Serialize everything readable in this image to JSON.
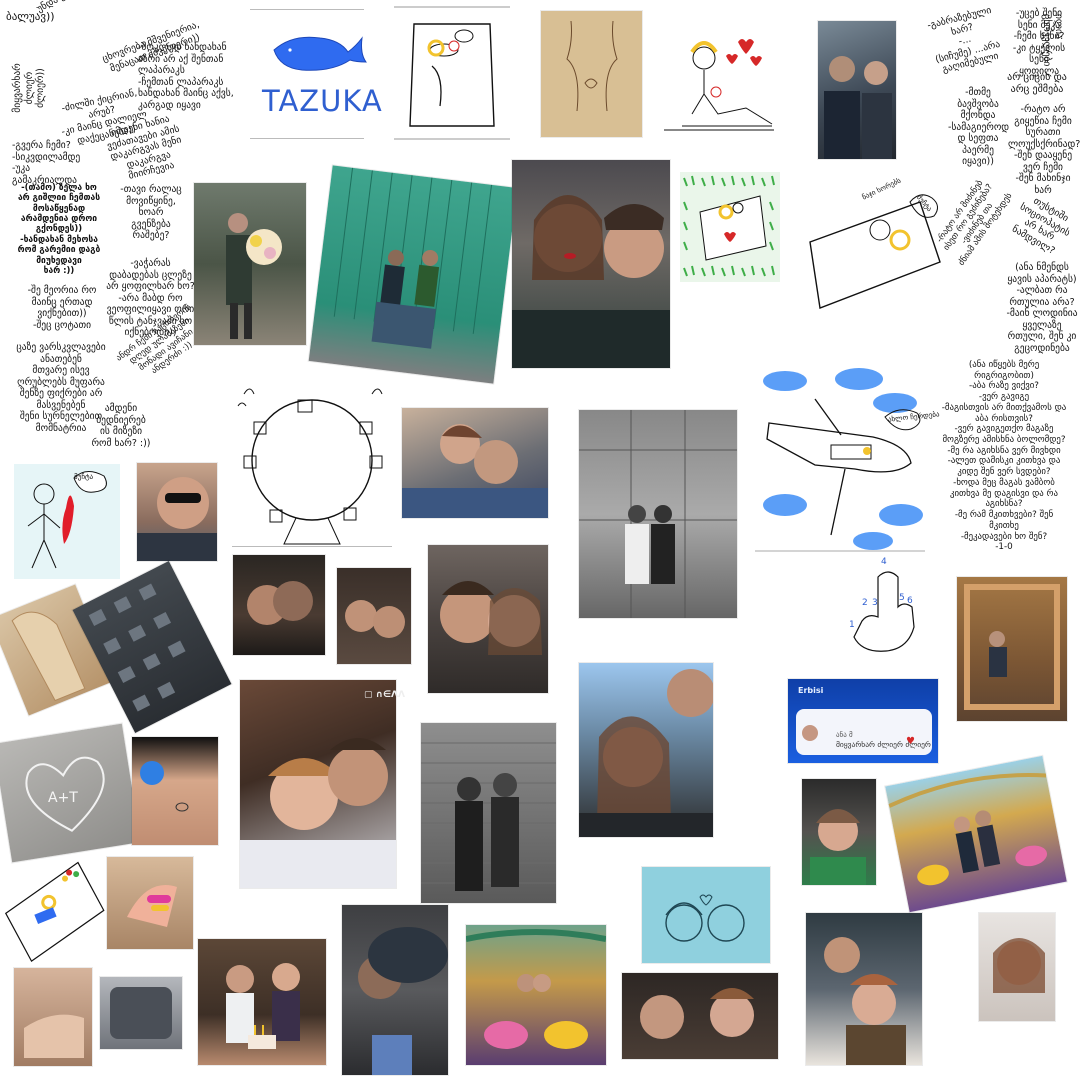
{
  "notes": {
    "n01": "ბალუავ))",
    "n02": "უნდა ვიწუპაჭუპო ა.ვ",
    "n03": "ცხოვრება მშვენიერია,\nმენაცათ მშვენიერი))",
    "n04": "-მოკლედ ხანდახან\nაზრი არ აქ შენთან\nლაპარაკს\n-ჩემთან ლაპარაკს\nხანდახან მაინც აქვს,\nკარგად იყავი",
    "n05": "-ძილში ქიცრიან,\nარუბ?\n-კი მაინც დალიელ\nდაქეცანება))",
    "n06": "მიყვარხარ\nძლიერ\nძლიერ))",
    "n07": "იმდენი ხანია\nვეძათავები ამის\nდაკარგვას მენი\nდაკარგვა\nმიირჩევია",
    "n08": "-გვერა ჩემი?\n-სიკვდილამდე\n-უკა გამაკრიალდა",
    "n09": "-(თამო) ზელა ხო\nარ გიშლიი ჩემთას\nმოსაწყენად\nარამდენია დროი\nგქონდეს))\n-ხანდახან მეხოსა\nრომ გარემიი დაგბ\nმიუხედავი\nხარ :))",
    "n10": "-თავი რალაც\nმოვიწყინე,\nხოარ\nგვენზება\nრაშებე?",
    "n11": "-შე მეორია რო\nმაინც ერთად\nვიქნებით))\n-შეც ცოტათი",
    "n12": "-ვაჭარას\nდაბადებას ცლეზე\nარ ყოფილხარ ხო?\n-არა მაბდ რო\nვეოფილიყავი ორი\nწლის ტანჯვაში ხო\nიქნებოდი))",
    "n13": "ცაზე ვარსკვლავები\nანათებენ\nმთვარე ისევ\nღრუბლებს მუფარა\nშენზე ფიქრები არ\nმასვენებენ\nშენი სურნელებით\nმომნატრია",
    "n14": "ანდრ ჩემი საცხოვრის\nდღედ ულამაზესი\nმონადი ავიჩანი\nანდერძი :))",
    "n15": "ამდენი\nბედნიერებ\nის მიზეზი\nრომ ხარ? :))",
    "n16": "-გაბრაზებული\nხარ?\n-...\n(სიჩუმე) ...არა\nგაღიმებული",
    "n17": "-უცებ შენი\nსენი მეკა\n-ჩემი სენი?\n-კი ტყელის\nსენი ყოფილა",
    "n18": "ილია ცხოველები",
    "n19": "არ ციცის და\nარც ეშმება",
    "n20": "-მთმე\nბავშვობა\nმქონდა\n-სამაგიეროდ\nდ სეფთა\nპაერმე\nიყავი))",
    "n21": "-რატო არ\nგიყეწია ჩემი\nსურათი\nლოუქსქრინად?\n-შენ დააყენე\nვერ ჩემი\n-შენ მახინჯი\nხარ",
    "n22": "-რატო არ მიძინებ\nისეთ რო გეძინება?\n-ვიძინებ თა\nძნიამ ამის მოტეხდეს",
    "n23": "თუსტიში\nსოციოპატის\nარ ხარ\nნამდვილ?",
    "n24": "(ანა ნმენდს\nყავის აპარატს)\n-ალბათ რა\nრთულია არა?\n-მაინ ლოდინია\nყველაზე\nრთული, შენ კი\nგეცოდინება",
    "n25": "(ანა იწყებს მერე\nრიგრიგობით)\n-აბა რაზე ვიქვი?\n-ვერ გავიგე\n-მაგისთვის არ მითქვამოს და\nაბა რისთვის?\n-ვერ გავიგეთქო მაგაზე\nმოგზერე ამისხნა ბოლომდე?\n-მე რა აგიხსნა ვერ მივხდი\n-ალეთ დამისკი კითხვა და\nკიდე შენ ვერ სვდები?\n-ხოდა მეც მაგას ვამბობ\nკითხვა მე დაგისვი და რა\nაგიხსნა?\n-მე რამ მკითხვები? შენ\nმკითხე\n-მეკადავები ხო შენ?\n-1-0"
  },
  "drawings": {
    "tazuka": "TAZUKA",
    "snore": "ნაჯი\nხორებს",
    "plane_speech": "ახლო\nჩერდება",
    "bubble_stick": "მუჩტა",
    "finger_nums": [
      "1",
      "2",
      "3",
      "4",
      "5",
      "6"
    ],
    "heart_carving": "A+T",
    "tv_logo": "Erbisi",
    "tv_sender": "ანა მ",
    "tv_message": "მიყვარხარ ძლიერ ძლიერ"
  },
  "colors": {
    "page": "#ffffff",
    "ink": "#111111",
    "accent_blue": "#2f5fd0",
    "cloud_blue": "#5b9ef7",
    "heart_red": "#d62828",
    "grass_green": "#3fae49",
    "hair_yellow": "#f2c32e"
  }
}
